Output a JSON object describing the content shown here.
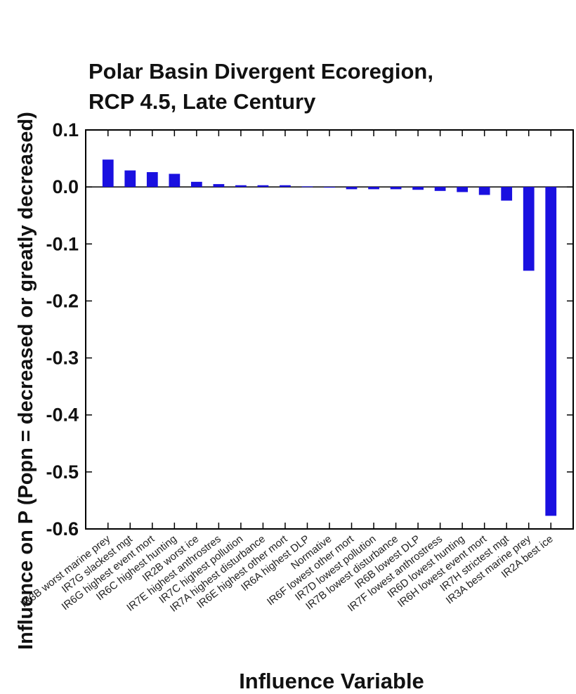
{
  "chart_data": {
    "type": "bar",
    "title": [
      "Polar Basin Divergent Ecoregion,",
      "RCP 4.5, Late Century"
    ],
    "xlabel": "Influence Variable",
    "ylabel": "Influence on P (Popn = decreased or greatly decreased)",
    "ylim": [
      -0.6,
      0.1
    ],
    "yticks": [
      "0.1",
      "0.0",
      "-0.1",
      "-0.2",
      "-0.3",
      "-0.4",
      "-0.5",
      "-0.6"
    ],
    "grid": false,
    "bar_color": "#1a10e0",
    "categories": [
      "IR3B worst marine prey",
      "IR7G slackest mgt",
      "IR6G highest event mort",
      "IR6C highest hunting",
      "IR2B worst ice",
      "IR7E highest anthrostres",
      "IR7C highest pollution",
      "IR7A highest disturbance",
      "IR6E highest other mort",
      "IR6A highest DLP",
      "Normative",
      "IR6F lowest other mort",
      "IR7D lowest pollution",
      "IR7B lowest disturbance",
      "IR6B lowest DLP",
      "IR7F lowest anthrostress",
      "IR6D lowest hunting",
      "IR6H lowest event mort",
      "IR7H strictest mgt",
      "IR3A best marine prey",
      "IR2A best ice"
    ],
    "values": [
      0.048,
      0.029,
      0.026,
      0.023,
      0.009,
      0.005,
      0.003,
      0.003,
      0.003,
      0.001,
      0.0,
      -0.004,
      -0.004,
      -0.004,
      -0.005,
      -0.007,
      -0.009,
      -0.014,
      -0.024,
      -0.147,
      -0.577
    ]
  }
}
